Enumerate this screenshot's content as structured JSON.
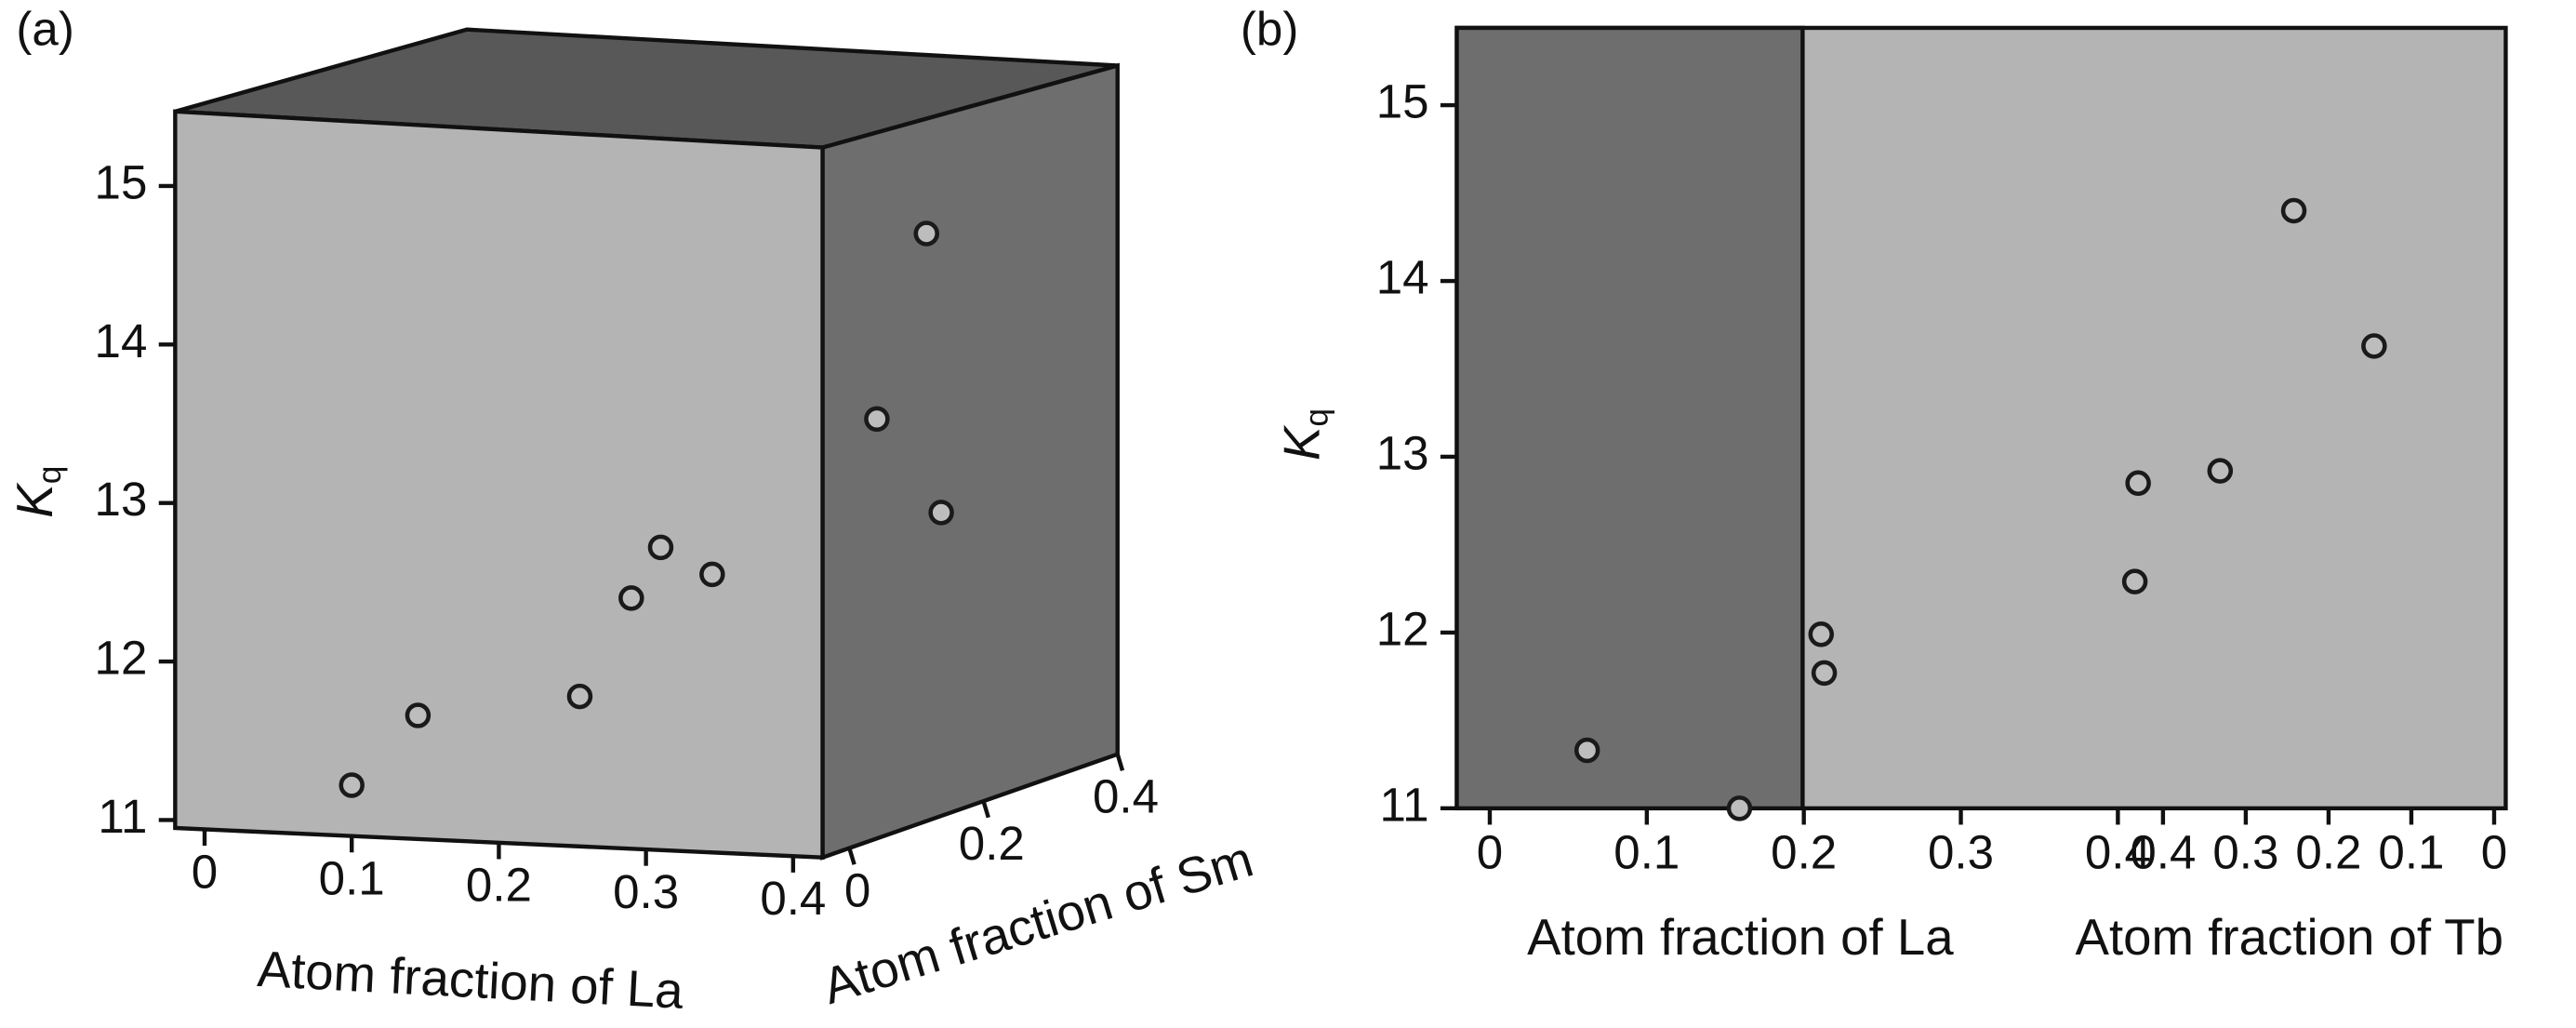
{
  "chart_data": [
    {
      "type": "box3d",
      "panel_label": "(a)",
      "ylabel": "K",
      "ylabel_subscript": "q",
      "xlabel": "Atom fraction of La",
      "zlabel": "Atom fraction of Sm",
      "xlim": [
        -0.02,
        0.42
      ],
      "xticks": [
        0,
        0.1,
        0.2,
        0.3,
        0.4
      ],
      "zlim": [
        -0.04,
        0.4
      ],
      "zticks": [
        0,
        0.2,
        0.4
      ],
      "ylim": [
        10.95,
        15.47
      ],
      "yticks": [
        11,
        12,
        13,
        14,
        15
      ],
      "series": [
        {
          "x": [
            0.1,
            0.145,
            0.255,
            0.29,
            0.31,
            0.345
          ],
          "values": [
            11.22,
            11.66,
            11.78,
            12.4,
            12.72,
            12.55
          ]
        },
        {
          "z": [
            0.041,
            0.115,
            0.137
          ],
          "values": [
            13.53,
            14.7,
            12.94
          ]
        }
      ]
    },
    {
      "type": "split",
      "panel_label": "(b)",
      "ylabel": "K",
      "ylabel_subscript": "q",
      "xlabel": "Atom fraction of La",
      "x2label": "Atom fraction of Tb",
      "xlim": [
        -0.021,
        0.647
      ],
      "xticks": [
        0,
        0.1,
        0.2,
        0.3,
        0.4
      ],
      "x2lim": [
        1.253,
        -0.014
      ],
      "x2ticks": [
        0.4,
        0.3,
        0.2,
        0.1,
        0
      ],
      "ylim": [
        11,
        15.44
      ],
      "yticks": [
        11,
        12,
        13,
        14,
        15
      ],
      "series": [
        {
          "x": [
            0.062,
            0.159,
            0.211,
            0.213
          ],
          "values": [
            11.33,
            11.0,
            11.99,
            11.77
          ]
        },
        {
          "x": [
            0.434,
            0.43,
            0.331,
            0.242,
            0.145
          ],
          "axis": "x2",
          "values": [
            12.29,
            12.85,
            12.92,
            14.4,
            13.63
          ]
        }
      ]
    }
  ]
}
